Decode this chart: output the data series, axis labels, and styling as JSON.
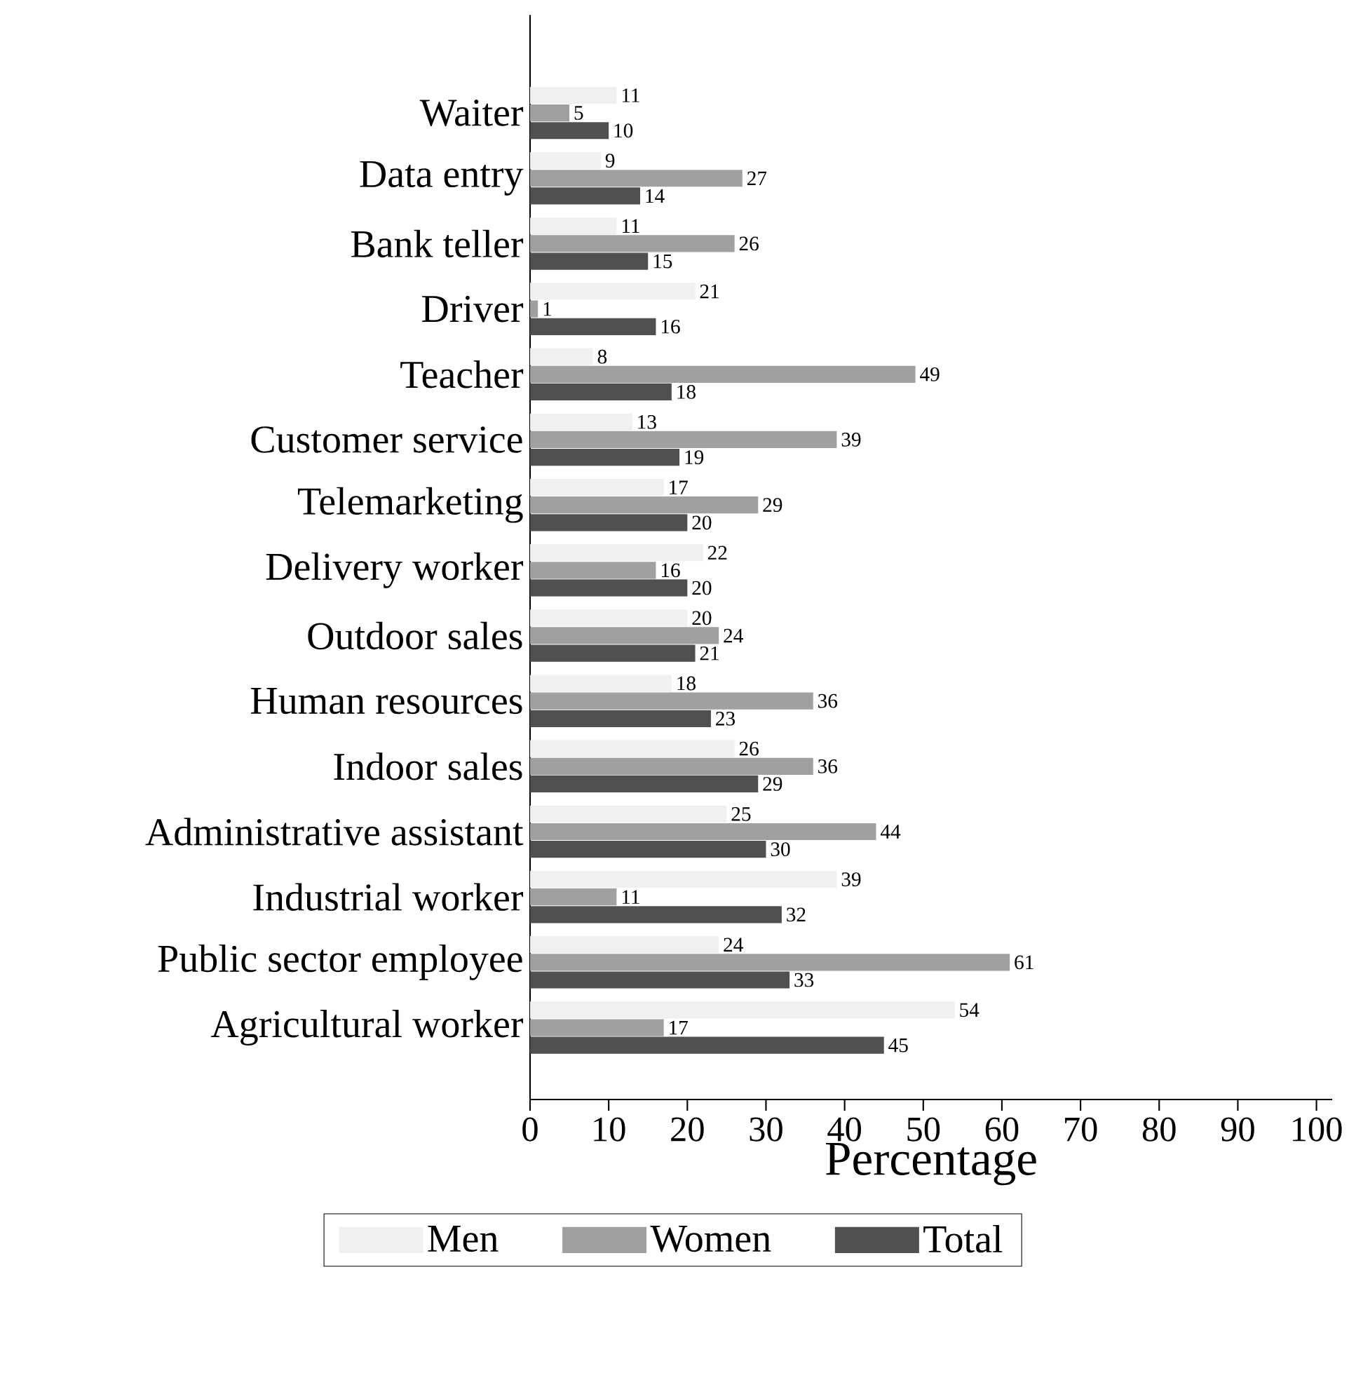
{
  "chart_data": {
    "type": "bar",
    "orientation": "horizontal",
    "xlabel": "Percentage",
    "categories": [
      "Waiter",
      "Data entry",
      "Bank teller",
      "Driver",
      "Teacher",
      "Customer service",
      "Telemarketing",
      "Delivery worker",
      "Outdoor sales",
      "Human resources",
      "Indoor sales",
      "Administrative assistant",
      "Industrial worker",
      "Public sector employee",
      "Agricultural worker"
    ],
    "series": [
      {
        "name": "Men",
        "color": "#f0f0f0",
        "values": [
          11,
          9,
          11,
          21,
          8,
          13,
          17,
          22,
          20,
          18,
          26,
          25,
          39,
          24,
          54
        ]
      },
      {
        "name": "Women",
        "color": "#a0a0a0",
        "values": [
          5,
          27,
          26,
          1,
          49,
          39,
          29,
          16,
          24,
          36,
          36,
          44,
          11,
          61,
          17
        ]
      },
      {
        "name": "Total",
        "color": "#505050",
        "values": [
          10,
          14,
          15,
          16,
          18,
          19,
          20,
          20,
          21,
          23,
          29,
          30,
          32,
          33,
          45
        ]
      }
    ],
    "xlim": [
      0,
      102
    ],
    "xticks": [
      0,
      10,
      20,
      30,
      40,
      50,
      60,
      70,
      80,
      90,
      100
    ],
    "data_labels": true,
    "legend": "bottom",
    "grid": false
  }
}
